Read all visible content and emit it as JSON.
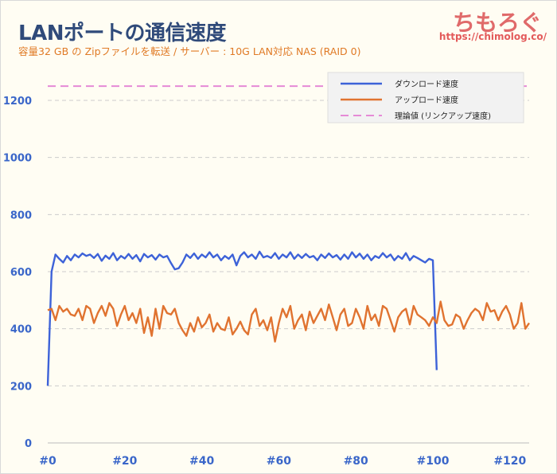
{
  "header": {
    "title": "LANポートの通信速度",
    "subtitle": "容量32 GB の Zipファイルを転送 / サーバー : 10G LAN対応 NAS (RAID 0)",
    "logo_text": "ちもろぐ",
    "logo_url": "https://chimolog.co/"
  },
  "colors": {
    "download": "#3d62d8",
    "upload": "#e07330",
    "theoretical": "#e58ad6",
    "axis_text": "#3a66c9",
    "grid": "#cccccc"
  },
  "chart_data": {
    "type": "line",
    "title": "LANポートの通信速度",
    "subtitle": "容量32 GB の Zipファイルを転送 / サーバー : 10G LAN対応 NAS (RAID 0)",
    "xlabel": "",
    "ylabel": "",
    "xlim": [
      0,
      125
    ],
    "ylim": [
      0,
      1300
    ],
    "xticks": [
      "#0",
      "#20",
      "#40",
      "#60",
      "#80",
      "#100",
      "#120"
    ],
    "xtick_values": [
      0,
      20,
      40,
      60,
      80,
      100,
      120
    ],
    "yticks": [
      "0",
      "200",
      "400",
      "600",
      "800",
      "1000",
      "1200"
    ],
    "ytick_values": [
      0,
      200,
      400,
      600,
      800,
      1000,
      1200
    ],
    "grid": true,
    "legend_position": "top-right",
    "series": [
      {
        "name": "ダウンロード速度",
        "style": "solid",
        "x": [
          0,
          1,
          2,
          3,
          4,
          5,
          6,
          7,
          8,
          9,
          10,
          11,
          12,
          13,
          14,
          15,
          16,
          17,
          18,
          19,
          20,
          21,
          22,
          23,
          24,
          25,
          26,
          27,
          28,
          29,
          30,
          31,
          32,
          33,
          34,
          35,
          36,
          37,
          38,
          39,
          40,
          41,
          42,
          43,
          44,
          45,
          46,
          47,
          48,
          49,
          50,
          51,
          52,
          53,
          54,
          55,
          56,
          57,
          58,
          59,
          60,
          61,
          62,
          63,
          64,
          65,
          66,
          67,
          68,
          69,
          70,
          71,
          72,
          73,
          74,
          75,
          76,
          77,
          78,
          79,
          80,
          81,
          82,
          83,
          84,
          85,
          86,
          87,
          88,
          89,
          90,
          91,
          92,
          93,
          94,
          95,
          96,
          97,
          98,
          99,
          100,
          101
        ],
        "values": [
          200,
          600,
          660,
          645,
          632,
          655,
          640,
          660,
          650,
          664,
          655,
          660,
          648,
          662,
          638,
          656,
          645,
          665,
          640,
          655,
          646,
          662,
          645,
          658,
          636,
          662,
          650,
          658,
          642,
          660,
          650,
          655,
          630,
          608,
          612,
          632,
          660,
          648,
          664,
          645,
          660,
          650,
          668,
          650,
          660,
          640,
          655,
          645,
          660,
          622,
          655,
          668,
          650,
          660,
          645,
          670,
          650,
          655,
          648,
          665,
          645,
          660,
          650,
          668,
          645,
          660,
          648,
          662,
          650,
          655,
          640,
          660,
          648,
          664,
          650,
          658,
          642,
          660,
          645,
          668,
          650,
          663,
          645,
          660,
          640,
          655,
          648,
          665,
          650,
          660,
          640,
          655,
          645,
          665,
          640,
          655,
          648,
          640,
          632,
          645,
          640,
          255
        ],
        "color": "#3d62d8"
      },
      {
        "name": "アップロード速度",
        "style": "solid",
        "x": [
          0,
          1,
          2,
          3,
          4,
          5,
          6,
          7,
          8,
          9,
          10,
          11,
          12,
          13,
          14,
          15,
          16,
          17,
          18,
          19,
          20,
          21,
          22,
          23,
          24,
          25,
          26,
          27,
          28,
          29,
          30,
          31,
          32,
          33,
          34,
          35,
          36,
          37,
          38,
          39,
          40,
          41,
          42,
          43,
          44,
          45,
          46,
          47,
          48,
          49,
          50,
          51,
          52,
          53,
          54,
          55,
          56,
          57,
          58,
          59,
          60,
          61,
          62,
          63,
          64,
          65,
          66,
          67,
          68,
          69,
          70,
          71,
          72,
          73,
          74,
          75,
          76,
          77,
          78,
          79,
          80,
          81,
          82,
          83,
          84,
          85,
          86,
          87,
          88,
          89,
          90,
          91,
          92,
          93,
          94,
          95,
          96,
          97,
          98,
          99,
          100,
          101,
          102,
          103,
          104,
          105,
          106,
          107,
          108,
          109,
          110,
          111,
          112,
          113,
          114,
          115,
          116,
          117,
          118,
          119,
          120,
          121,
          122,
          123,
          124,
          125
        ],
        "values": [
          465,
          470,
          430,
          480,
          460,
          470,
          450,
          445,
          470,
          430,
          480,
          470,
          420,
          455,
          480,
          445,
          490,
          470,
          410,
          450,
          480,
          430,
          455,
          420,
          470,
          385,
          440,
          375,
          470,
          400,
          480,
          455,
          450,
          470,
          420,
          395,
          375,
          420,
          390,
          440,
          405,
          420,
          450,
          390,
          420,
          400,
          395,
          440,
          380,
          400,
          425,
          395,
          380,
          450,
          470,
          410,
          430,
          395,
          440,
          355,
          420,
          470,
          440,
          480,
          400,
          430,
          450,
          395,
          460,
          420,
          445,
          470,
          430,
          485,
          440,
          395,
          450,
          470,
          410,
          420,
          470,
          440,
          400,
          480,
          430,
          450,
          410,
          480,
          470,
          430,
          390,
          440,
          460,
          470,
          415,
          480,
          450,
          440,
          430,
          410,
          440,
          420,
          495,
          430,
          410,
          415,
          450,
          440,
          400,
          430,
          455,
          470,
          460,
          430,
          490,
          460,
          465,
          430,
          460,
          480,
          450,
          400,
          420,
          490,
          400,
          420
        ],
        "color": "#e07330"
      },
      {
        "name": "理論値 (リンクアップ速度)",
        "style": "dashed",
        "x": [
          0,
          125
        ],
        "values": [
          1250,
          1250
        ],
        "color": "#e58ad6"
      }
    ]
  }
}
